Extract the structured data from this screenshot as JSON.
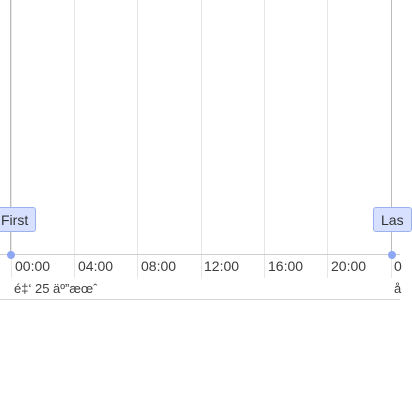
{
  "timeline": {
    "ticks": [
      "00:00",
      "04:00",
      "08:00",
      "12:00",
      "16:00",
      "20:00",
      "0"
    ],
    "date_labels": [
      "é‡‘ 25 äº”æœˆ",
      "å"
    ]
  },
  "markers": {
    "first_label": "First",
    "last_label": "Las"
  }
}
